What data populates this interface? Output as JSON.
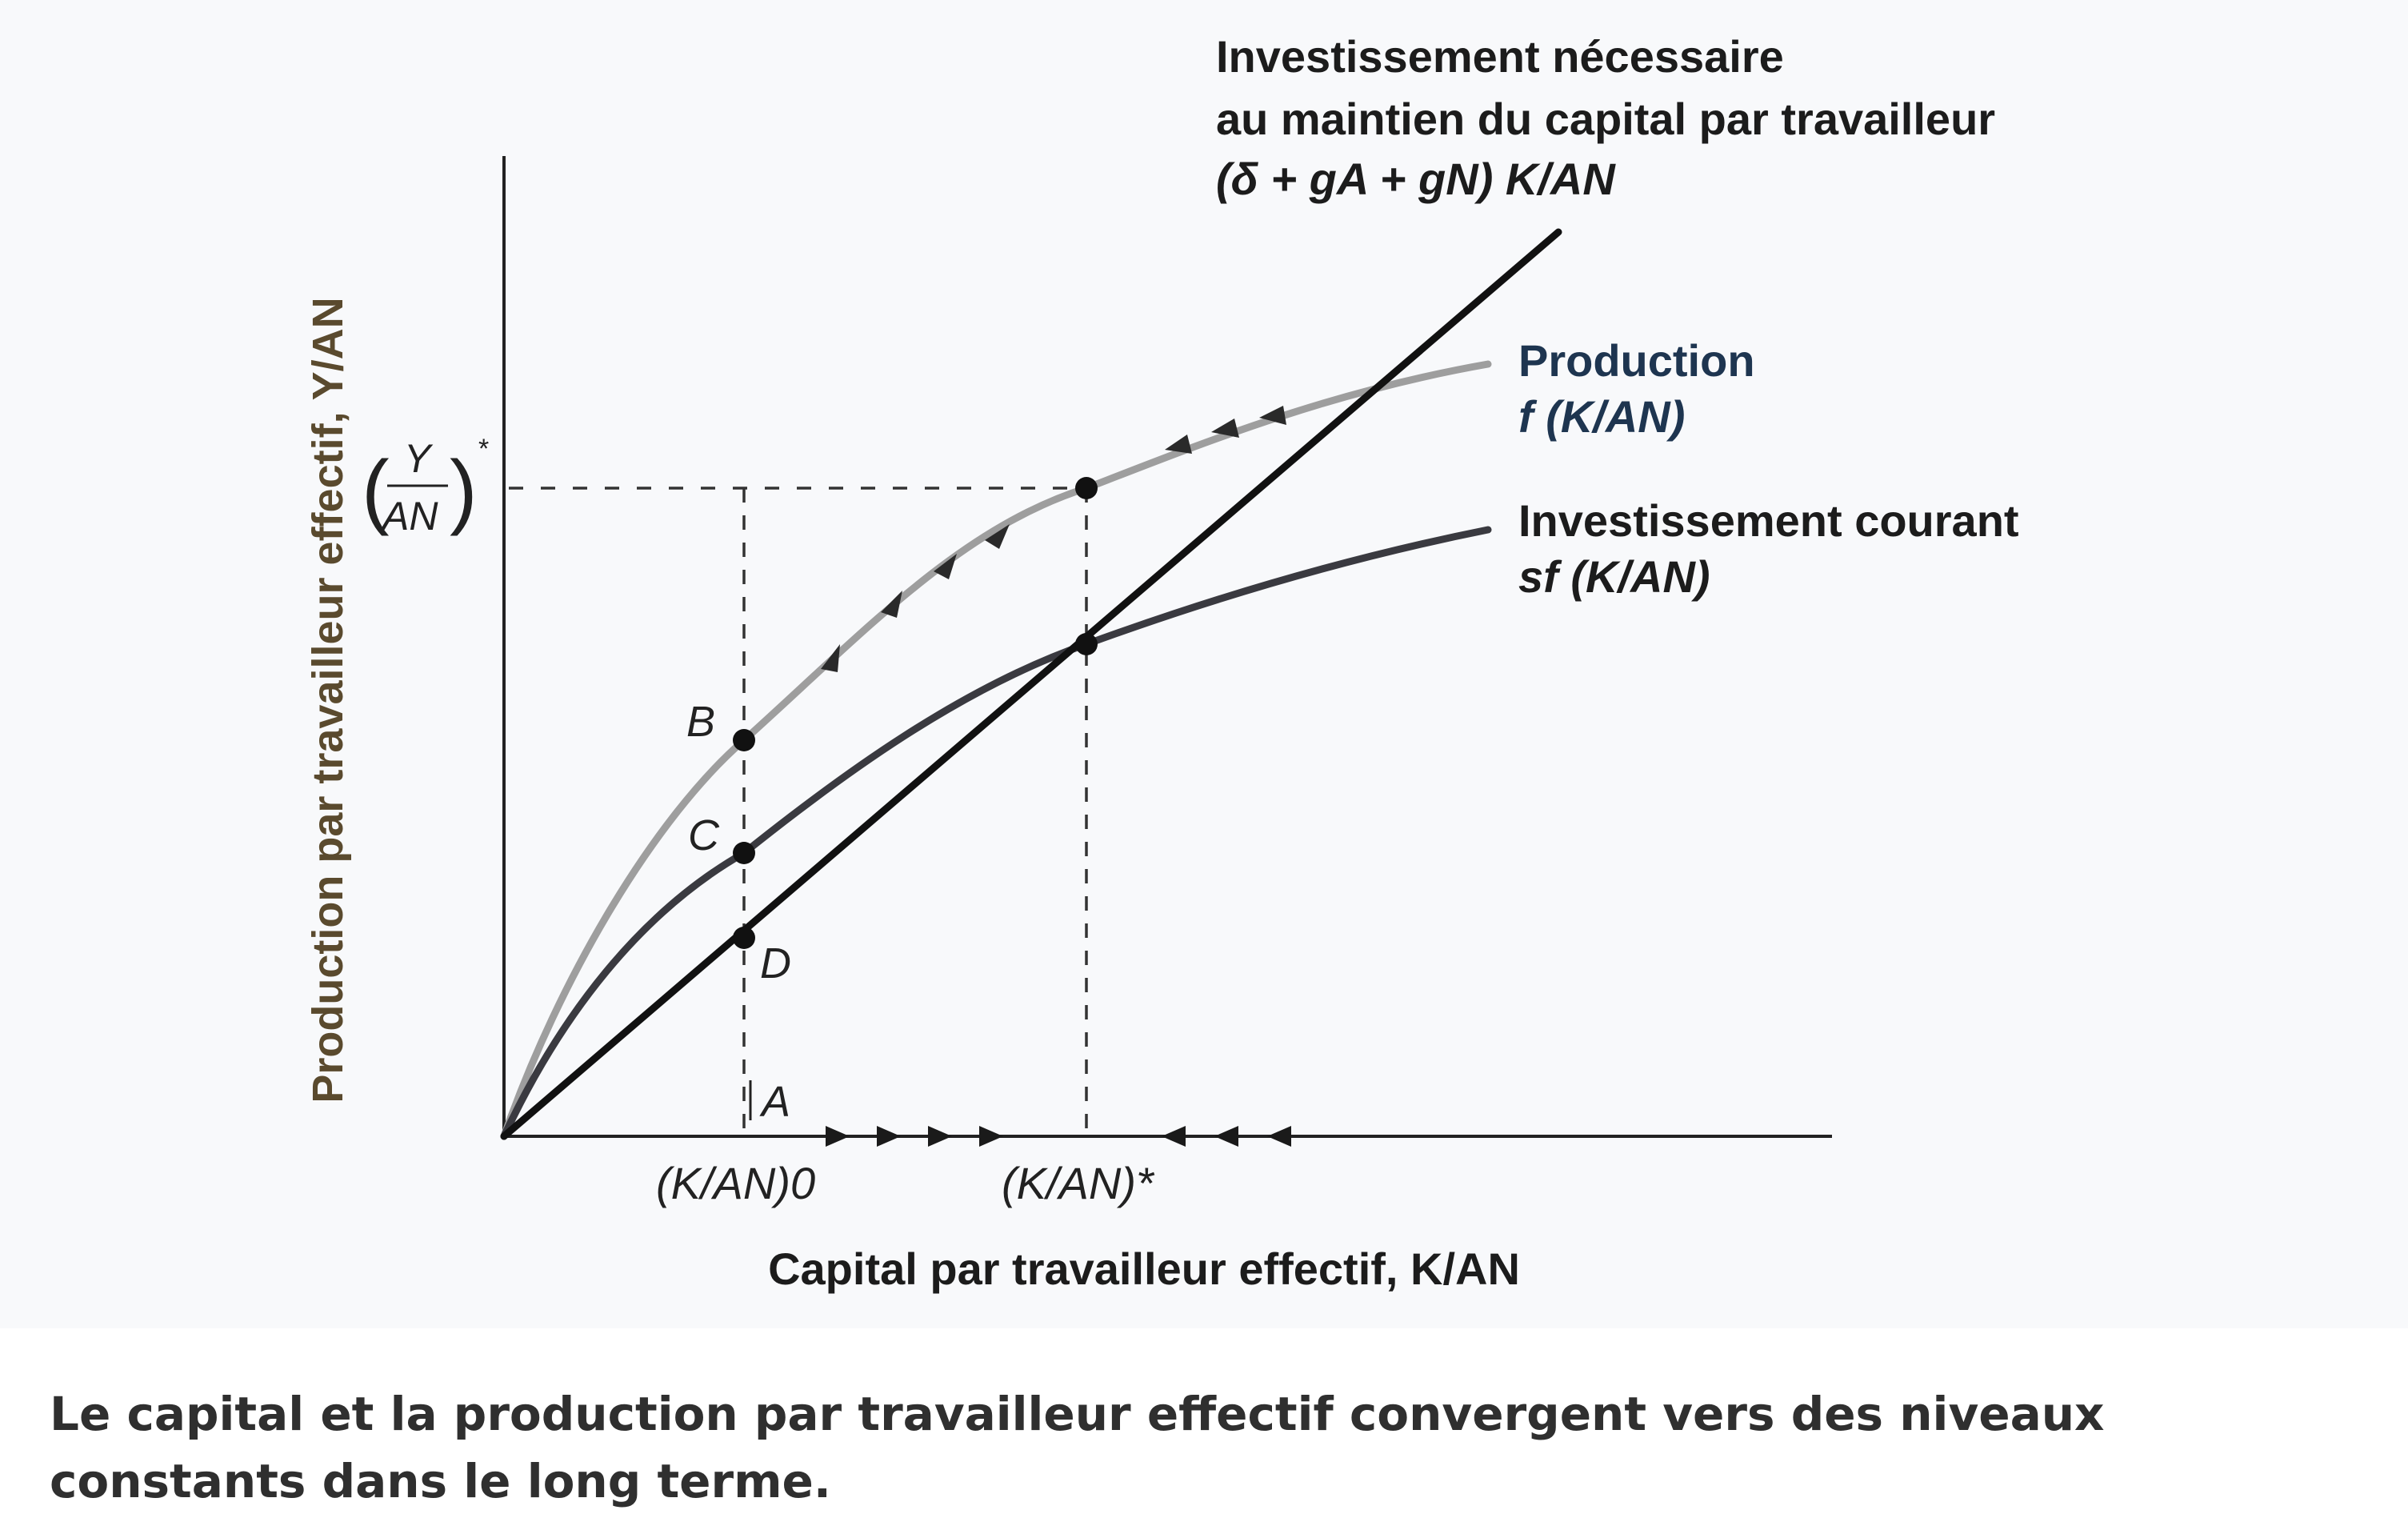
{
  "diagram": {
    "y_axis_label": "Production par travailleur effectif, Y/AN",
    "x_axis_label": "Capital par travailleur effectif, K/AN",
    "curves": {
      "required_investment": {
        "line1": "Investissement nécessaire",
        "line2": "au maintien du capital par travailleur",
        "formula": "(δ + gA + gN) K/AN"
      },
      "production": {
        "name": "Production",
        "formula": "f (K/AN)"
      },
      "current_investment": {
        "name": "Investissement courant",
        "formula": "sf (K/AN)"
      }
    },
    "points": {
      "A": "A",
      "B": "B",
      "C": "C",
      "D": "D"
    },
    "x_ticks": {
      "k0": "(K/AN)0",
      "kstar": "(K/AN)*"
    },
    "y_tick": {
      "numerator": "Y",
      "denominator": "AN",
      "star": "*"
    },
    "colors": {
      "production": "#9e9e9e",
      "current_investment": "#3a3a40",
      "required": "#111111",
      "label_production": "#1e3550",
      "axis_label": "#5a4a2e"
    }
  },
  "caption": "Le capital et la production par travailleur effectif convergent vers des niveaux constants dans le long terme."
}
